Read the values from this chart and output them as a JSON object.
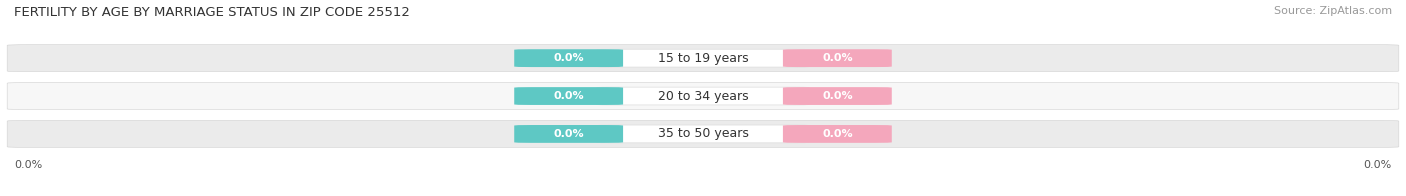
{
  "title": "FERTILITY BY AGE BY MARRIAGE STATUS IN ZIP CODE 25512",
  "source": "Source: ZipAtlas.com",
  "categories": [
    "15 to 19 years",
    "20 to 34 years",
    "35 to 50 years"
  ],
  "married_values": [
    0.0,
    0.0,
    0.0
  ],
  "unmarried_values": [
    0.0,
    0.0,
    0.0
  ],
  "married_color": "#5EC8C4",
  "unmarried_color": "#F4A7BC",
  "bar_bg_colors": [
    "#EBEBEB",
    "#F7F7F7",
    "#EBEBEB"
  ],
  "center_pill_color": "#FFFFFF",
  "title_fontsize": 9.5,
  "source_fontsize": 8,
  "value_fontsize": 8,
  "label_fontsize": 9,
  "axis_fontsize": 8,
  "figsize": [
    14.06,
    1.96
  ],
  "dpi": 100
}
